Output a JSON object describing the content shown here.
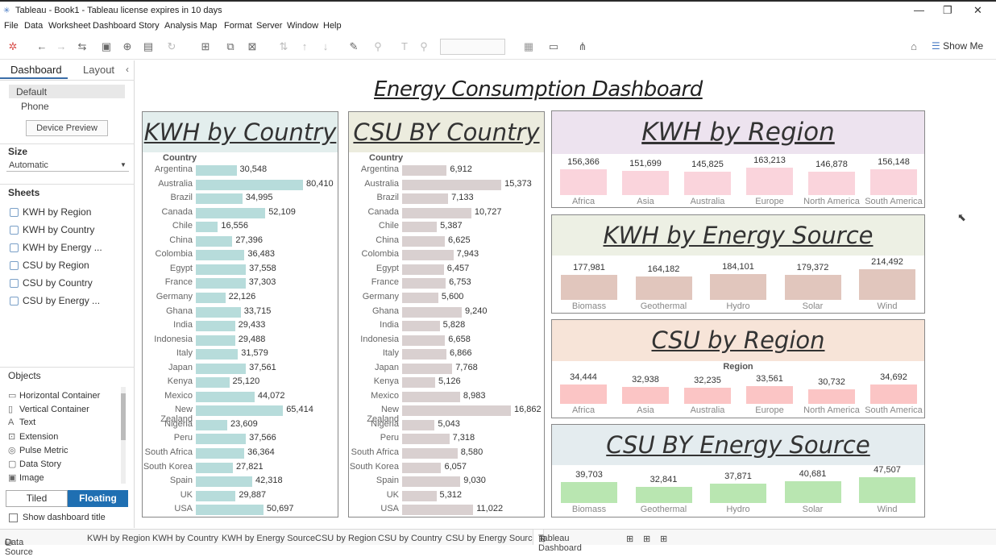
{
  "window": {
    "title": "Tableau - Book1 - Tableau license expires in 10 days"
  },
  "menu": [
    "File",
    "Data",
    "Worksheet",
    "Dashboard",
    "Story",
    "Analysis",
    "Map",
    "Format",
    "Server",
    "Window",
    "Help"
  ],
  "toolbar": {
    "show_me": "Show Me"
  },
  "sidebar": {
    "tab_dashboard": "Dashboard",
    "tab_layout": "Layout",
    "device_default": "Default",
    "device_phone": "Phone",
    "device_preview": "Device Preview",
    "size_label": "Size",
    "size_value": "Automatic",
    "sheets_label": "Sheets",
    "sheets": [
      "KWH by Region",
      "KWH by Country",
      "KWH by Energy ...",
      "CSU by Region",
      "CSU by Country",
      "CSU by Energy ..."
    ],
    "objects_label": "Objects",
    "objects": [
      "Horizontal Container",
      "Vertical Container",
      "Text",
      "Extension",
      "Pulse Metric",
      "Data Story",
      "Image"
    ],
    "tiled": "Tiled",
    "floating": "Floating",
    "show_title": "Show dashboard title"
  },
  "bottom_tabs": [
    "Data Source",
    "KWH by Region",
    "KWH by Country",
    "KWH by Energy Source",
    "CSU by Region",
    "CSU by Country",
    "CSU by Energy Source",
    "Tableau Dashboard"
  ],
  "dashboard": {
    "title": "Energy Consumption Dashboard",
    "country_header": "Country",
    "countries": [
      "Argentina",
      "Australia",
      "Brazil",
      "Canada",
      "Chile",
      "China",
      "Colombia",
      "Egypt",
      "France",
      "Germany",
      "Ghana",
      "India",
      "Indonesia",
      "Italy",
      "Japan",
      "Kenya",
      "Mexico",
      "New Zealand",
      "Nigeria",
      "Peru",
      "South Africa",
      "South Korea",
      "Spain",
      "UK",
      "USA"
    ],
    "kwh_country": {
      "title": "KWH by Country",
      "values": [
        30548,
        80410,
        34995,
        52109,
        16556,
        27396,
        36483,
        37558,
        37303,
        22126,
        33715,
        29433,
        29488,
        31579,
        37561,
        25120,
        44072,
        65414,
        23609,
        37566,
        36364,
        27821,
        42318,
        29887,
        50697
      ],
      "labels": [
        "30,548",
        "80,410",
        "34,995",
        "52,109",
        "16,556",
        "27,396",
        "36,483",
        "37,558",
        "37,303",
        "22,126",
        "33,715",
        "29,433",
        "29,488",
        "31,579",
        "37,561",
        "25,120",
        "44,072",
        "65,414",
        "23,609",
        "37,566",
        "36,364",
        "27,821",
        "42,318",
        "29,887",
        "50,697"
      ],
      "color": "#b7dcdb",
      "header_bg": "#e3eeed"
    },
    "csu_country": {
      "title": "CSU BY Country",
      "values": [
        6912,
        15373,
        7133,
        10727,
        5387,
        6625,
        7943,
        6457,
        6753,
        5600,
        9240,
        5828,
        6658,
        6866,
        7768,
        5126,
        8983,
        16862,
        5043,
        7318,
        8580,
        6057,
        9030,
        5312,
        11022
      ],
      "labels": [
        "6,912",
        "15,373",
        "7,133",
        "10,727",
        "5,387",
        "6,625",
        "7,943",
        "6,457",
        "6,753",
        "5,600",
        "9,240",
        "5,828",
        "6,658",
        "6,866",
        "7,768",
        "5,126",
        "8,983",
        "16,862",
        "5,043",
        "7,318",
        "8,580",
        "6,057",
        "9,030",
        "5,312",
        "11,022"
      ],
      "color": "#d9d0d0",
      "header_bg": "#ececde"
    },
    "kwh_region": {
      "title": "KWH by Region",
      "subtitle": "",
      "categories": [
        "Africa",
        "Asia",
        "Australia",
        "Europe",
        "North America",
        "South America"
      ],
      "values": [
        156366,
        151699,
        145825,
        163213,
        146878,
        156148
      ],
      "labels": [
        "156,366",
        "151,699",
        "145,825",
        "163,213",
        "146,878",
        "156,148"
      ],
      "color": "#fad4dc",
      "header_bg": "#ede3ef"
    },
    "kwh_source": {
      "title": "KWH by Energy Source",
      "subtitle": "",
      "categories": [
        "Biomass",
        "Geothermal",
        "Hydro",
        "Solar",
        "Wind"
      ],
      "values": [
        177981,
        164182,
        184101,
        179372,
        214492
      ],
      "labels": [
        "177,981",
        "164,182",
        "184,101",
        "179,372",
        "214,492"
      ],
      "color": "#e1c6bd",
      "header_bg": "#edf0e4"
    },
    "csu_region": {
      "title": "CSU by Region",
      "subtitle": "Region",
      "categories": [
        "Africa",
        "Asia",
        "Australia",
        "Europe",
        "North America",
        "South America"
      ],
      "values": [
        34444,
        32938,
        32235,
        33561,
        30732,
        34692
      ],
      "labels": [
        "34,444",
        "32,938",
        "32,235",
        "33,561",
        "30,732",
        "34,692"
      ],
      "color": "#fbc5c5",
      "header_bg": "#f7e4d8"
    },
    "csu_source": {
      "title": "CSU BY Energy Source",
      "subtitle": "",
      "categories": [
        "Biomass",
        "Geothermal",
        "Hydro",
        "Solar",
        "Wind"
      ],
      "values": [
        39703,
        32841,
        37871,
        40681,
        47507
      ],
      "labels": [
        "39,703",
        "32,841",
        "37,871",
        "40,681",
        "47,507"
      ],
      "color": "#b9e6b1",
      "header_bg": "#e4ecef"
    }
  },
  "chart_data": [
    {
      "type": "bar",
      "title": "KWH by Country",
      "xlabel": "",
      "ylabel": "Country",
      "categories": [
        "Argentina",
        "Australia",
        "Brazil",
        "Canada",
        "Chile",
        "China",
        "Colombia",
        "Egypt",
        "France",
        "Germany",
        "Ghana",
        "India",
        "Indonesia",
        "Italy",
        "Japan",
        "Kenya",
        "Mexico",
        "New Zealand",
        "Nigeria",
        "Peru",
        "South Africa",
        "South Korea",
        "Spain",
        "UK",
        "USA"
      ],
      "values": [
        30548,
        80410,
        34995,
        52109,
        16556,
        27396,
        36483,
        37558,
        37303,
        22126,
        33715,
        29433,
        29488,
        31579,
        37561,
        25120,
        44072,
        65414,
        23609,
        37566,
        36364,
        27821,
        42318,
        29887,
        50697
      ]
    },
    {
      "type": "bar",
      "title": "CSU BY Country",
      "xlabel": "",
      "ylabel": "Country",
      "categories": [
        "Argentina",
        "Australia",
        "Brazil",
        "Canada",
        "Chile",
        "China",
        "Colombia",
        "Egypt",
        "France",
        "Germany",
        "Ghana",
        "India",
        "Indonesia",
        "Italy",
        "Japan",
        "Kenya",
        "Mexico",
        "New Zealand",
        "Nigeria",
        "Peru",
        "South Africa",
        "South Korea",
        "Spain",
        "UK",
        "USA"
      ],
      "values": [
        6912,
        15373,
        7133,
        10727,
        5387,
        6625,
        7943,
        6457,
        6753,
        5600,
        9240,
        5828,
        6658,
        6866,
        7768,
        5126,
        8983,
        16862,
        5043,
        7318,
        8580,
        6057,
        9030,
        5312,
        11022
      ]
    },
    {
      "type": "bar",
      "title": "KWH by Region",
      "categories": [
        "Africa",
        "Asia",
        "Australia",
        "Europe",
        "North America",
        "South America"
      ],
      "values": [
        156366,
        151699,
        145825,
        163213,
        146878,
        156148
      ]
    },
    {
      "type": "bar",
      "title": "KWH by Energy Source",
      "categories": [
        "Biomass",
        "Geothermal",
        "Hydro",
        "Solar",
        "Wind"
      ],
      "values": [
        177981,
        164182,
        184101,
        179372,
        214492
      ]
    },
    {
      "type": "bar",
      "title": "CSU by Region",
      "xlabel": "Region",
      "categories": [
        "Africa",
        "Asia",
        "Australia",
        "Europe",
        "North America",
        "South America"
      ],
      "values": [
        34444,
        32938,
        32235,
        33561,
        30732,
        34692
      ]
    },
    {
      "type": "bar",
      "title": "CSU BY Energy Source",
      "categories": [
        "Biomass",
        "Geothermal",
        "Hydro",
        "Solar",
        "Wind"
      ],
      "values": [
        39703,
        32841,
        37871,
        40681,
        47507
      ]
    }
  ]
}
